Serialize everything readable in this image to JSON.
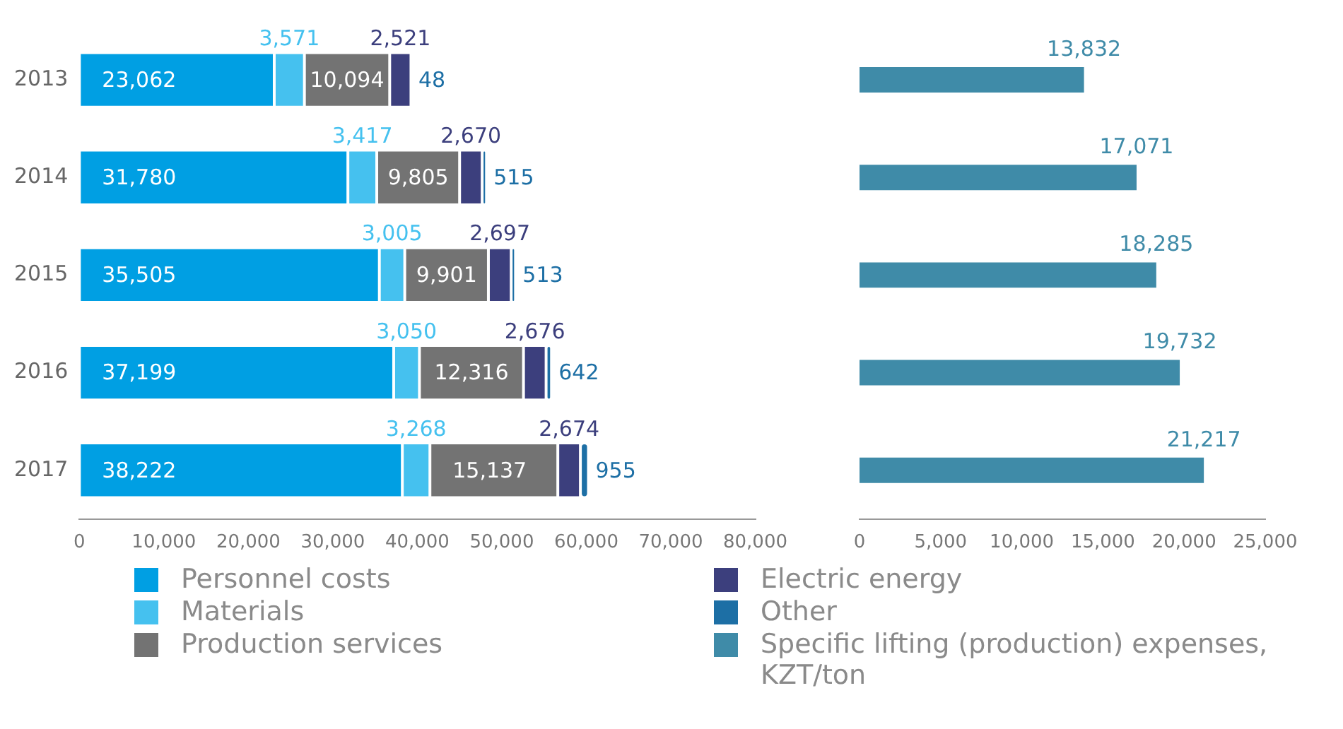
{
  "chart_data": [
    {
      "type": "bar",
      "orientation": "horizontal",
      "stacked": true,
      "categories": [
        "2013",
        "2014",
        "2015",
        "2016",
        "2017"
      ],
      "series": [
        {
          "name": "Personnel costs",
          "color": "#009fe3",
          "values": [
            23062,
            31780,
            35505,
            37199,
            38222
          ],
          "value_labels": [
            "23,062",
            "31,780",
            "35,505",
            "37,199",
            "38,222"
          ]
        },
        {
          "name": "Materials",
          "color": "#45c1ef",
          "values": [
            3571,
            3417,
            3005,
            3050,
            3268
          ],
          "value_labels": [
            "3,571",
            "3,417",
            "3,005",
            "3,050",
            "3,268"
          ]
        },
        {
          "name": "Production services",
          "color": "#737373",
          "values": [
            10094,
            9805,
            9901,
            12316,
            15137
          ],
          "value_labels": [
            "10,094",
            "9,805",
            "9,901",
            "12,316",
            "15,137"
          ]
        },
        {
          "name": "Electric energy",
          "color": "#3c3f7d",
          "values": [
            2521,
            2670,
            2697,
            2676,
            2674
          ],
          "value_labels": [
            "2,521",
            "2,670",
            "2,697",
            "2,676",
            "2,674"
          ]
        },
        {
          "name": "Other",
          "color": "#1d6fa5",
          "values": [
            48,
            515,
            513,
            642,
            955
          ],
          "value_labels": [
            "48",
            "515",
            "513",
            "642",
            "955"
          ]
        }
      ],
      "xlim": [
        0,
        80000
      ],
      "xticks": [
        {
          "value": 0,
          "label": "0"
        },
        {
          "value": 10000,
          "label": "10,000"
        },
        {
          "value": 20000,
          "label": "20,000"
        },
        {
          "value": 30000,
          "label": "30,000"
        },
        {
          "value": 40000,
          "label": "40,000"
        },
        {
          "value": 50000,
          "label": "50,000"
        },
        {
          "value": 60000,
          "label": "60,000"
        },
        {
          "value": 70000,
          "label": "70,000"
        },
        {
          "value": 80000,
          "label": "80,000"
        }
      ],
      "grid": false,
      "legend": "bottom"
    },
    {
      "type": "bar",
      "orientation": "horizontal",
      "categories": [
        "2013",
        "2014",
        "2015",
        "2016",
        "2017"
      ],
      "series": [
        {
          "name": "Specific lifting (production) expenses, KZT/ton",
          "color": "#3f8ba8",
          "values": [
            13832,
            17071,
            18285,
            19732,
            21217
          ],
          "value_labels": [
            "13,832",
            "17,071",
            "18,285",
            "19,732",
            "21,217"
          ]
        }
      ],
      "xlim": [
        0,
        25000
      ],
      "xticks": [
        {
          "value": 0,
          "label": "0"
        },
        {
          "value": 5000,
          "label": "5,000"
        },
        {
          "value": 10000,
          "label": "10,000"
        },
        {
          "value": 15000,
          "label": "15,000"
        },
        {
          "value": 20000,
          "label": "20,000"
        },
        {
          "value": 25000,
          "label": "25,000"
        }
      ],
      "grid": false,
      "tick_labels": "x",
      "legend": "bottom"
    }
  ]
}
